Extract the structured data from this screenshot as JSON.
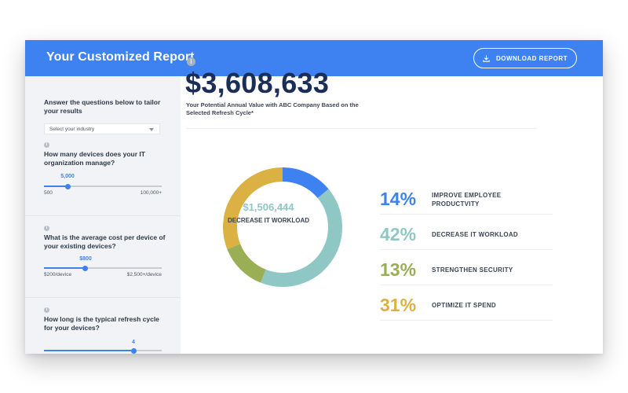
{
  "header": {
    "title": "Your Customized Report",
    "download_label": "DOWNLOAD REPORT"
  },
  "sidebar": {
    "intro": "Answer the questions below to tailor your results",
    "industry_select": {
      "selected": "Select your industry"
    },
    "questions": [
      {
        "text": "How many devices does your IT organization manage?",
        "value_label": "5,000",
        "value": 5000,
        "min_label": "500",
        "max_label": "100,000+",
        "fill_fraction": 0.2
      },
      {
        "text": "What is the average cost per device of your existing devices?",
        "value_label": "$800",
        "value": 800,
        "min_label": "$200/device",
        "max_label": "$2,500+/device",
        "fill_fraction": 0.35
      },
      {
        "text": "How long is the typical refresh cycle for your devices?",
        "value_label": "4",
        "value": 4,
        "fill_fraction": 0.76
      }
    ]
  },
  "main": {
    "total_value": "$3,608,633",
    "subtitle": "Your Potential Annual Value with ABC Company Based on the Selected Refresh Cycle*",
    "donut": {
      "center_amount": "$1,506,444",
      "center_caption": "DECREASE IT WORKLOAD",
      "segments": [
        {
          "label": "IMPROVE EMPLOYEE PRODUCTVITY",
          "percent": 14,
          "color": "#3d82f0"
        },
        {
          "label": "DECREASE IT WORKLOAD",
          "percent": 42,
          "color": "#8fc7c4"
        },
        {
          "label": "STRENGTHEN SECURITY",
          "percent": 13,
          "color": "#9aae55"
        },
        {
          "label": "OPTIMIZE IT SPEND",
          "percent": 31,
          "color": "#dbb144"
        }
      ]
    },
    "stats": [
      {
        "pct": "14%",
        "label": "IMPROVE EMPLOYEE PRODUCTVITY",
        "color": "#3d82f0"
      },
      {
        "pct": "42%",
        "label": "DECREASE IT WORKLOAD",
        "color": "#8fc7c4"
      },
      {
        "pct": "13%",
        "label": "STRENGTHEN SECURITY",
        "color": "#9aae55"
      },
      {
        "pct": "31%",
        "label": "OPTIMIZE IT SPEND",
        "color": "#dbb144"
      }
    ]
  },
  "icons": [
    "download-icon",
    "info-icon",
    "chevron-down-icon"
  ]
}
